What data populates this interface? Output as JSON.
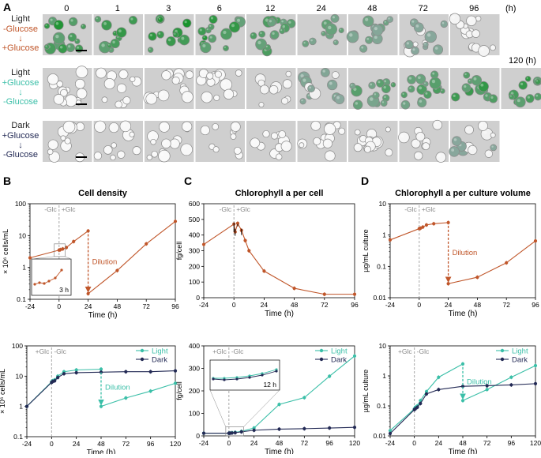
{
  "figure": {
    "panel_labels": [
      "A",
      "B",
      "C",
      "D"
    ],
    "micrograph_grid": {
      "time_labels": [
        "0",
        "1",
        "3",
        "6",
        "12",
        "24",
        "48",
        "72",
        "96"
      ],
      "time_unit": "(h)",
      "extra_time_label": "120 (h)",
      "rows": [
        {
          "lines": [
            "Light",
            "-Glucose",
            "↓",
            "+Glucose"
          ],
          "color": "#c0562a",
          "green_levels": [
            0.9,
            0.9,
            0.95,
            0.85,
            0.6,
            0.45,
            0.3,
            0.15,
            0.08
          ],
          "has_extra": false
        },
        {
          "lines": [
            "Light",
            "+Glucose",
            "↓",
            "-Glucose"
          ],
          "color": "#3bbfa8",
          "green_levels": [
            0.02,
            0.02,
            0.03,
            0.04,
            0.08,
            0.18,
            0.5,
            0.6,
            0.75
          ],
          "extra_level": 0.85,
          "has_extra": true
        },
        {
          "lines": [
            "Dark",
            "+Glucose",
            "↓",
            "-Glucose"
          ],
          "color": "#232a55",
          "green_levels": [
            0.02,
            0.02,
            0.02,
            0.03,
            0.03,
            0.04,
            0.05,
            0.06,
            0.12
          ],
          "has_extra": false
        }
      ]
    },
    "colors": {
      "orange": "#c0562a",
      "teal": "#3bbfa8",
      "navy": "#232a55",
      "dashed": "#a8a8a8",
      "grid_bg": "#cfcfcf"
    }
  },
  "chart_data": [
    {
      "id": "B_top",
      "type": "line",
      "title": "Cell density",
      "panel": "B",
      "xlabel": "Time (h)",
      "ylabel": "× 10⁶ cells/mL",
      "yscale": "log",
      "xlim": [
        -24,
        96
      ],
      "ylim": [
        0.1,
        100
      ],
      "xticks": [
        "-24",
        "0",
        "24",
        "48",
        "72",
        "96"
      ],
      "yticks": [
        "0.1",
        "1",
        "10",
        "100"
      ],
      "condition_labels": [
        "-Glc",
        "+Glc"
      ],
      "dilution_label": "Dilution",
      "inset_label": "3 h",
      "series": [
        {
          "name": "Light (-Glc → +Glc)",
          "color": "#c0562a",
          "x": [
            -24,
            0,
            1,
            3,
            6,
            12,
            24
          ],
          "y": [
            2.0,
            3.5,
            3.6,
            3.8,
            4.2,
            6.5,
            14
          ]
        },
        {
          "name": "Light after dilution",
          "color": "#c0562a",
          "x": [
            24,
            48,
            72,
            96
          ],
          "y": [
            0.15,
            0.8,
            5.5,
            28
          ]
        }
      ]
    },
    {
      "id": "C_top",
      "type": "line",
      "title": "Chlorophyll a per cell",
      "panel": "C",
      "xlabel": "Time (h)",
      "ylabel": "fg/cell",
      "yscale": "linear",
      "xlim": [
        -24,
        96
      ],
      "ylim": [
        0,
        600
      ],
      "xticks": [
        "-24",
        "0",
        "24",
        "48",
        "72",
        "96"
      ],
      "yticks": [
        "0",
        "100",
        "200",
        "300",
        "400",
        "500",
        "600"
      ],
      "condition_labels": [
        "-Glc",
        "+Glc"
      ],
      "series": [
        {
          "name": "Light (-Glc → +Glc)",
          "color": "#c0562a",
          "x": [
            -24,
            0,
            1,
            3,
            6,
            9,
            12,
            24,
            48,
            72,
            96
          ],
          "y": [
            340,
            470,
            420,
            475,
            430,
            365,
            300,
            170,
            60,
            22,
            22
          ]
        }
      ]
    },
    {
      "id": "D_top",
      "type": "line",
      "title": "Chlorophyll a per culture volume",
      "panel": "D",
      "xlabel": "Time (h)",
      "ylabel": "µg/mL culture",
      "yscale": "log",
      "xlim": [
        -24,
        96
      ],
      "ylim": [
        0.01,
        10
      ],
      "xticks": [
        "-24",
        "0",
        "24",
        "48",
        "72",
        "96"
      ],
      "yticks": [
        "0.01",
        "0.1",
        "1",
        "10"
      ],
      "condition_labels": [
        "-Glc",
        "+Glc"
      ],
      "dilution_label": "Dilution",
      "series": [
        {
          "name": "Light (-Glc → +Glc)",
          "color": "#c0562a",
          "x": [
            -24,
            0,
            1,
            3,
            6,
            12,
            24
          ],
          "y": [
            0.7,
            1.6,
            1.65,
            1.8,
            2.1,
            2.3,
            2.5
          ]
        },
        {
          "name": "Light after dilution",
          "color": "#c0562a",
          "x": [
            24,
            48,
            72,
            96
          ],
          "y": [
            0.028,
            0.045,
            0.13,
            0.65
          ]
        }
      ]
    },
    {
      "id": "B_bottom",
      "type": "line",
      "panel": "B",
      "xlabel": "Time (h)",
      "ylabel": "× 10⁶ cells/mL",
      "yscale": "log",
      "xlim": [
        -24,
        120
      ],
      "ylim": [
        0.1,
        100
      ],
      "xticks": [
        "-24",
        "0",
        "24",
        "48",
        "72",
        "96",
        "120"
      ],
      "yticks": [
        "0.1",
        "1",
        "10",
        "100"
      ],
      "condition_labels": [
        "+Glc",
        "-Glc"
      ],
      "dilution_label": "Dilution",
      "legend": [
        "Light",
        "Dark"
      ],
      "series": [
        {
          "name": "Light",
          "color": "#3bbfa8",
          "x": [
            -24,
            0,
            1,
            3,
            6,
            12,
            24,
            48
          ],
          "y": [
            1.0,
            6.5,
            7,
            7.5,
            10,
            14,
            16,
            17
          ]
        },
        {
          "name": "Light after dilution",
          "color": "#3bbfa8",
          "x": [
            48,
            72,
            96,
            120
          ],
          "y": [
            1.0,
            1.9,
            3.2,
            5.8
          ]
        },
        {
          "name": "Dark",
          "color": "#232a55",
          "x": [
            -24,
            0,
            1,
            3,
            6,
            12,
            24,
            48,
            72,
            96,
            120
          ],
          "y": [
            1.0,
            6.2,
            6.6,
            7.0,
            9,
            12,
            13,
            13.5,
            14,
            14,
            15
          ]
        }
      ]
    },
    {
      "id": "C_bottom",
      "type": "line",
      "panel": "C",
      "xlabel": "Time (h)",
      "ylabel": "fg/cell",
      "yscale": "linear",
      "xlim": [
        -24,
        120
      ],
      "ylim": [
        0,
        400
      ],
      "xticks": [
        "-24",
        "0",
        "24",
        "48",
        "72",
        "96",
        "120"
      ],
      "yticks": [
        "0",
        "100",
        "200",
        "300",
        "400"
      ],
      "condition_labels": [
        "+Glc",
        "-Glc"
      ],
      "inset_label": "12 h",
      "legend": [
        "Light",
        "Dark"
      ],
      "series": [
        {
          "name": "Light",
          "color": "#3bbfa8",
          "x": [
            -24,
            0,
            1,
            3,
            6,
            12,
            24,
            48,
            72,
            96,
            120
          ],
          "y": [
            12,
            12,
            13,
            14,
            16,
            20,
            35,
            140,
            170,
            265,
            355
          ]
        },
        {
          "name": "Dark",
          "color": "#232a55",
          "x": [
            -24,
            0,
            1,
            3,
            6,
            12,
            24,
            48,
            72,
            96,
            120
          ],
          "y": [
            12,
            12,
            12,
            13,
            14,
            18,
            25,
            30,
            32,
            35,
            38
          ]
        }
      ]
    },
    {
      "id": "D_bottom",
      "type": "line",
      "panel": "D",
      "xlabel": "Time (h)",
      "ylabel": "µg/mL culture",
      "yscale": "log",
      "xlim": [
        -24,
        120
      ],
      "ylim": [
        0.01,
        10
      ],
      "xticks": [
        "-24",
        "0",
        "24",
        "48",
        "72",
        "96",
        "120"
      ],
      "yticks": [
        "0.01",
        "0.1",
        "1",
        "10"
      ],
      "condition_labels": [
        "+Glc",
        "-Glc"
      ],
      "dilution_label": "Dilution",
      "legend": [
        "Light",
        "Dark"
      ],
      "series": [
        {
          "name": "Light",
          "color": "#3bbfa8",
          "x": [
            -24,
            0,
            1,
            3,
            6,
            12,
            24,
            48
          ],
          "y": [
            0.015,
            0.08,
            0.09,
            0.1,
            0.15,
            0.3,
            0.9,
            2.5
          ]
        },
        {
          "name": "Light after dilution",
          "color": "#3bbfa8",
          "x": [
            48,
            72,
            96,
            120
          ],
          "y": [
            0.15,
            0.35,
            0.9,
            2.2
          ]
        },
        {
          "name": "Dark",
          "color": "#232a55",
          "x": [
            -24,
            0,
            1,
            3,
            6,
            12,
            24,
            48,
            72,
            96,
            120
          ],
          "y": [
            0.012,
            0.075,
            0.08,
            0.09,
            0.12,
            0.25,
            0.35,
            0.45,
            0.47,
            0.5,
            0.55
          ]
        }
      ]
    }
  ]
}
